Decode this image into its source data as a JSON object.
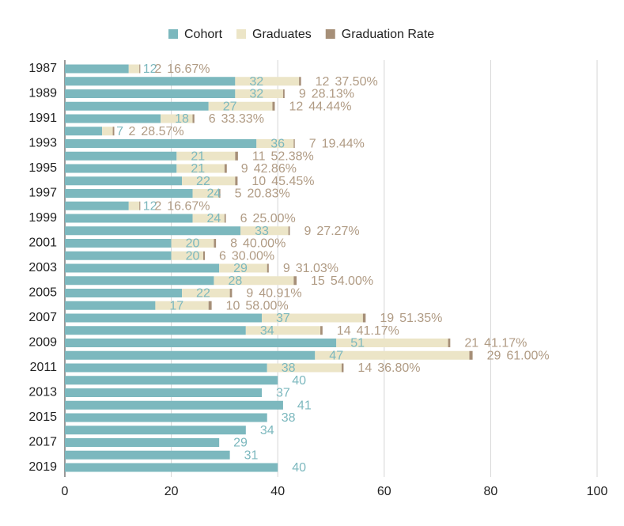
{
  "chart_data": {
    "type": "bar",
    "orientation": "horizontal",
    "stacked": true,
    "categories": [
      "1987",
      null,
      "1989",
      null,
      "1991",
      null,
      "1993",
      null,
      "1995",
      null,
      "1997",
      null,
      "1999",
      null,
      "2001",
      null,
      "2003",
      null,
      "2005",
      null,
      "2007",
      null,
      "2009",
      null,
      "2011",
      null,
      "2013",
      null,
      "2015",
      null,
      "2017",
      null,
      "2019"
    ],
    "series": [
      {
        "name": "Cohort",
        "color": "#7cb8be",
        "label_color": "#7cb8be",
        "values": [
          12,
          32,
          32,
          27,
          18,
          7,
          36,
          21,
          21,
          22,
          24,
          12,
          24,
          33,
          20,
          20,
          29,
          28,
          22,
          17,
          37,
          34,
          51,
          47,
          38,
          40,
          37,
          41,
          38,
          34,
          29,
          31,
          40
        ]
      },
      {
        "name": "Graduates",
        "color": "#ece5c7",
        "label_color": "#b09b84",
        "values": [
          2,
          12,
          9,
          12,
          6,
          2,
          7,
          11,
          9,
          10,
          5,
          2,
          6,
          9,
          8,
          6,
          9,
          15,
          9,
          10,
          19,
          14,
          21,
          29,
          14,
          null,
          null,
          null,
          null,
          null,
          null,
          null,
          null
        ]
      },
      {
        "name": "Graduation Rate",
        "color": "#a68f78",
        "label_color": "#b09b84",
        "values": [
          0.1667,
          0.375,
          0.2813,
          0.4444,
          0.3333,
          0.2857,
          0.1944,
          0.5238,
          0.4286,
          0.4545,
          0.2083,
          0.1667,
          0.25,
          0.2727,
          0.4,
          0.3,
          0.3103,
          0.54,
          0.4091,
          0.58,
          0.5135,
          0.4117,
          0.4117,
          0.61,
          0.368,
          null,
          null,
          null,
          null,
          null,
          null,
          null,
          null
        ],
        "value_labels": [
          "16.67%",
          "37.50%",
          "28.13%",
          "44.44%",
          "33.33%",
          "28.57%",
          "19.44%",
          "52.38%",
          "42.86%",
          "45.45%",
          "20.83%",
          "16.67%",
          "25.00%",
          "27.27%",
          "40.00%",
          "30.00%",
          "31.03%",
          "54.00%",
          "40.91%",
          "58.00%",
          "51.35%",
          "41.17%",
          "41.17%",
          "61.00%",
          "36.80%",
          null,
          null,
          null,
          null,
          null,
          null,
          null,
          null
        ]
      }
    ],
    "xlim": [
      0,
      100
    ],
    "xticks": [
      0,
      20,
      40,
      60,
      80,
      100
    ],
    "grid": true,
    "legend": "top"
  }
}
